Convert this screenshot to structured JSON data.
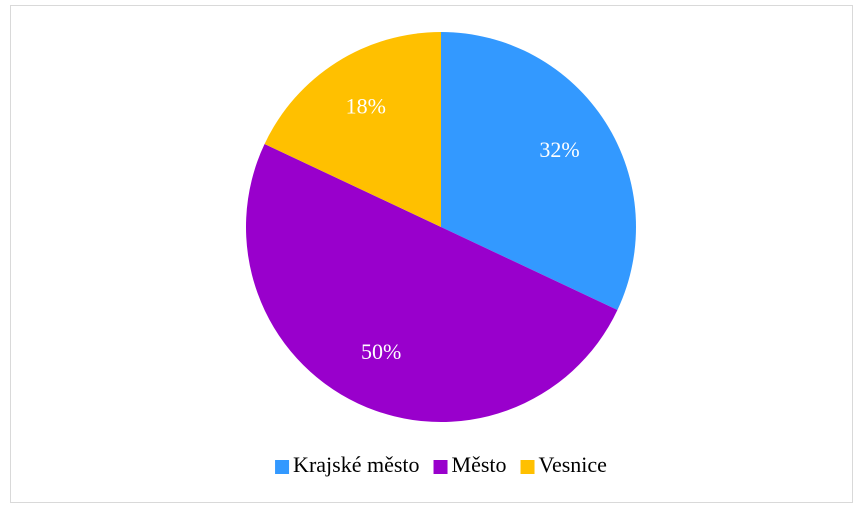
{
  "chart_data": {
    "type": "pie",
    "categories": [
      "Krajské město",
      "Město",
      "Vesnice"
    ],
    "values": [
      32,
      50,
      18
    ],
    "value_labels": [
      "32%",
      "50%",
      "18%"
    ],
    "colors": [
      "#3399ff",
      "#9900cc",
      "#ffc000"
    ],
    "legend": "bottom"
  }
}
